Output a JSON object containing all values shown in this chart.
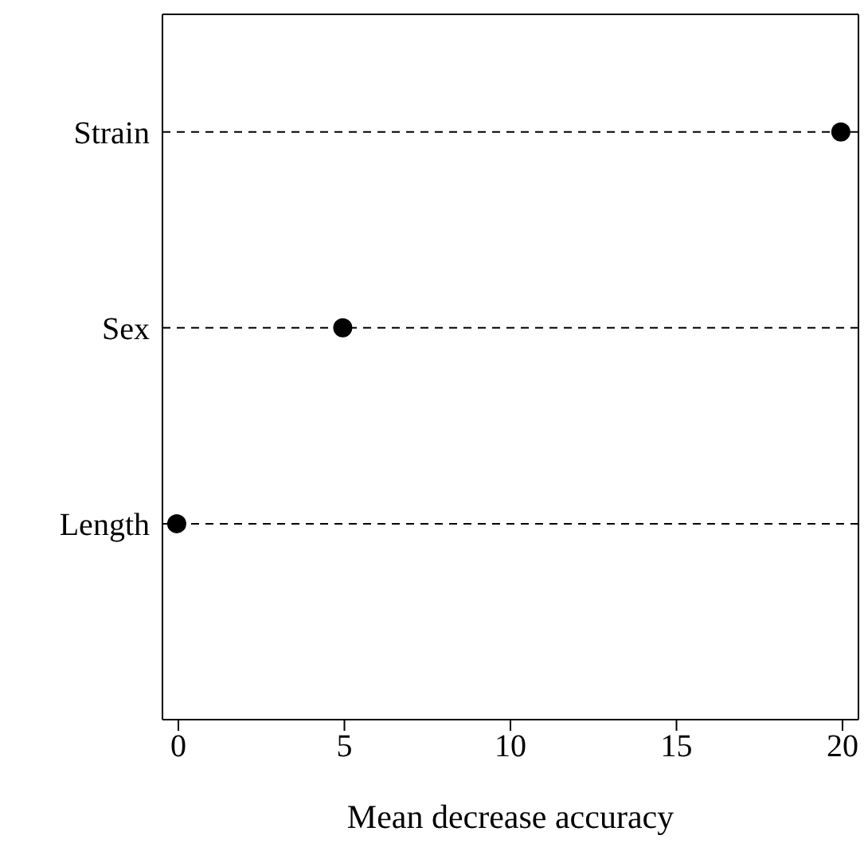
{
  "chart_data": {
    "type": "scatter",
    "orientation": "horizontal",
    "categories": [
      "Strain",
      "Sex",
      "Length"
    ],
    "values": [
      19.95,
      4.95,
      -0.05
    ],
    "color": "#000000",
    "marker": "circle",
    "xlabel": "Mean decrease accuracy",
    "xlim": [
      -0.48,
      20.48
    ],
    "xticks": [
      0,
      5,
      10,
      15,
      20
    ],
    "grid": "y"
  }
}
